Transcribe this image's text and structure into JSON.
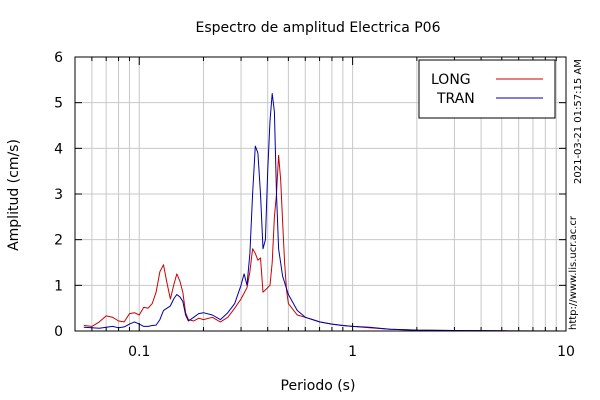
{
  "chart_data": {
    "type": "line",
    "title": "Espectro de amplitud Electrica P06",
    "xlabel": "Periodo (s)",
    "ylabel": "Amplitud (cm/s)",
    "xscale": "log",
    "xlim": [
      0.05,
      10
    ],
    "ylim": [
      0,
      6
    ],
    "x_ticks": [
      0.1,
      1,
      10
    ],
    "x_tick_labels": [
      "0.1",
      "1",
      "10"
    ],
    "y_ticks": [
      0,
      1,
      2,
      3,
      4,
      5,
      6
    ],
    "y_tick_labels": [
      "0",
      "1",
      "2",
      "3",
      "4",
      "5",
      "6"
    ],
    "grid": true,
    "legend_position": "top-right",
    "series": [
      {
        "name": "LONG",
        "color": "#cc0000",
        "points": [
          [
            0.055,
            0.12
          ],
          [
            0.06,
            0.1
          ],
          [
            0.065,
            0.2
          ],
          [
            0.07,
            0.33
          ],
          [
            0.075,
            0.3
          ],
          [
            0.08,
            0.22
          ],
          [
            0.085,
            0.2
          ],
          [
            0.09,
            0.38
          ],
          [
            0.095,
            0.4
          ],
          [
            0.1,
            0.35
          ],
          [
            0.105,
            0.52
          ],
          [
            0.11,
            0.5
          ],
          [
            0.115,
            0.6
          ],
          [
            0.12,
            0.85
          ],
          [
            0.125,
            1.3
          ],
          [
            0.13,
            1.45
          ],
          [
            0.135,
            1.05
          ],
          [
            0.14,
            0.7
          ],
          [
            0.145,
            1.0
          ],
          [
            0.15,
            1.25
          ],
          [
            0.155,
            1.1
          ],
          [
            0.16,
            0.85
          ],
          [
            0.165,
            0.4
          ],
          [
            0.17,
            0.25
          ],
          [
            0.18,
            0.22
          ],
          [
            0.19,
            0.28
          ],
          [
            0.2,
            0.25
          ],
          [
            0.22,
            0.3
          ],
          [
            0.24,
            0.2
          ],
          [
            0.26,
            0.3
          ],
          [
            0.28,
            0.5
          ],
          [
            0.3,
            0.7
          ],
          [
            0.32,
            0.95
          ],
          [
            0.33,
            1.3
          ],
          [
            0.34,
            1.8
          ],
          [
            0.35,
            1.7
          ],
          [
            0.36,
            1.55
          ],
          [
            0.37,
            1.6
          ],
          [
            0.38,
            0.85
          ],
          [
            0.39,
            0.9
          ],
          [
            0.4,
            0.95
          ],
          [
            0.41,
            1.0
          ],
          [
            0.42,
            1.5
          ],
          [
            0.43,
            2.5
          ],
          [
            0.44,
            3.0
          ],
          [
            0.45,
            3.85
          ],
          [
            0.46,
            3.3
          ],
          [
            0.47,
            2.4
          ],
          [
            0.48,
            1.5
          ],
          [
            0.49,
            0.9
          ],
          [
            0.5,
            0.6
          ],
          [
            0.55,
            0.35
          ],
          [
            0.6,
            0.3
          ],
          [
            0.65,
            0.25
          ],
          [
            0.7,
            0.2
          ],
          [
            0.8,
            0.15
          ],
          [
            0.9,
            0.12
          ],
          [
            1.0,
            0.1
          ],
          [
            1.2,
            0.07
          ],
          [
            1.5,
            0.04
          ],
          [
            2.0,
            0.02
          ],
          [
            3.0,
            0.01
          ],
          [
            5.0,
            0.005
          ],
          [
            10.0,
            0.0
          ]
        ]
      },
      {
        "name": "TRAN",
        "color": "#0000aa",
        "points": [
          [
            0.055,
            0.08
          ],
          [
            0.06,
            0.07
          ],
          [
            0.065,
            0.06
          ],
          [
            0.07,
            0.08
          ],
          [
            0.075,
            0.1
          ],
          [
            0.08,
            0.07
          ],
          [
            0.085,
            0.09
          ],
          [
            0.09,
            0.15
          ],
          [
            0.095,
            0.2
          ],
          [
            0.1,
            0.15
          ],
          [
            0.105,
            0.1
          ],
          [
            0.11,
            0.1
          ],
          [
            0.115,
            0.12
          ],
          [
            0.12,
            0.13
          ],
          [
            0.125,
            0.25
          ],
          [
            0.13,
            0.45
          ],
          [
            0.135,
            0.5
          ],
          [
            0.14,
            0.55
          ],
          [
            0.145,
            0.7
          ],
          [
            0.15,
            0.8
          ],
          [
            0.155,
            0.75
          ],
          [
            0.16,
            0.65
          ],
          [
            0.165,
            0.35
          ],
          [
            0.17,
            0.22
          ],
          [
            0.18,
            0.3
          ],
          [
            0.19,
            0.38
          ],
          [
            0.2,
            0.4
          ],
          [
            0.22,
            0.35
          ],
          [
            0.24,
            0.25
          ],
          [
            0.26,
            0.4
          ],
          [
            0.28,
            0.6
          ],
          [
            0.3,
            1.0
          ],
          [
            0.31,
            1.25
          ],
          [
            0.32,
            1.0
          ],
          [
            0.33,
            1.7
          ],
          [
            0.34,
            3.0
          ],
          [
            0.35,
            4.05
          ],
          [
            0.36,
            3.9
          ],
          [
            0.37,
            3.0
          ],
          [
            0.38,
            1.8
          ],
          [
            0.39,
            2.0
          ],
          [
            0.4,
            3.5
          ],
          [
            0.41,
            4.6
          ],
          [
            0.42,
            5.2
          ],
          [
            0.43,
            4.8
          ],
          [
            0.44,
            3.0
          ],
          [
            0.45,
            1.8
          ],
          [
            0.47,
            1.2
          ],
          [
            0.5,
            0.8
          ],
          [
            0.55,
            0.45
          ],
          [
            0.6,
            0.3
          ],
          [
            0.65,
            0.25
          ],
          [
            0.7,
            0.2
          ],
          [
            0.8,
            0.15
          ],
          [
            0.9,
            0.12
          ],
          [
            1.0,
            0.1
          ],
          [
            1.2,
            0.08
          ],
          [
            1.5,
            0.04
          ],
          [
            2.0,
            0.02
          ],
          [
            3.0,
            0.01
          ],
          [
            5.0,
            0.005
          ],
          [
            10.0,
            0.0
          ]
        ]
      }
    ]
  },
  "side_labels": {
    "timestamp": "2021-03-21 01:57:15 AM",
    "url": "http://www.lis.ucr.ac.cr"
  }
}
